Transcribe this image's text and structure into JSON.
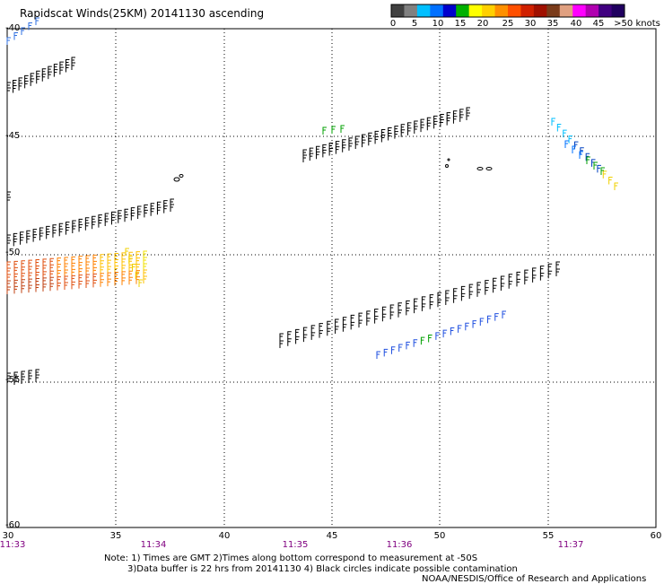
{
  "title": "Rapidscat Winds(25KM) 20141130 ascending",
  "legend": {
    "colors": [
      "#404040",
      "#808080",
      "#00bfff",
      "#0070ff",
      "#0000cd",
      "#00b000",
      "#ffff00",
      "#ffd000",
      "#ff9000",
      "#ff5000",
      "#d02000",
      "#a01000",
      "#7a3b1a",
      "#e0a080",
      "#ff00ff",
      "#b000b0",
      "#400080",
      "#200060"
    ],
    "labels": [
      "0",
      "5",
      "10",
      "15",
      "20",
      "25",
      "30",
      "35",
      "40",
      "45",
      ">50 knots"
    ]
  },
  "x_ticks": [
    "30",
    "35",
    "40",
    "45",
    "50",
    "55",
    "60"
  ],
  "times": [
    "11:33",
    "11:34",
    "11:35",
    "11:36",
    "11:37"
  ],
  "y_ticks": [
    "-40",
    "-45",
    "-50",
    "-55",
    "-60"
  ],
  "notes": {
    "line1": "Note: 1) Times are GMT 2)Times along bottom correspond to measurement at -50S",
    "line2": "3)Data buffer is 22 hrs from 20141130 4) Black circles indicate possible contamination",
    "line3": "NOAA/NESDIS/Office of Research and Applications"
  }
}
